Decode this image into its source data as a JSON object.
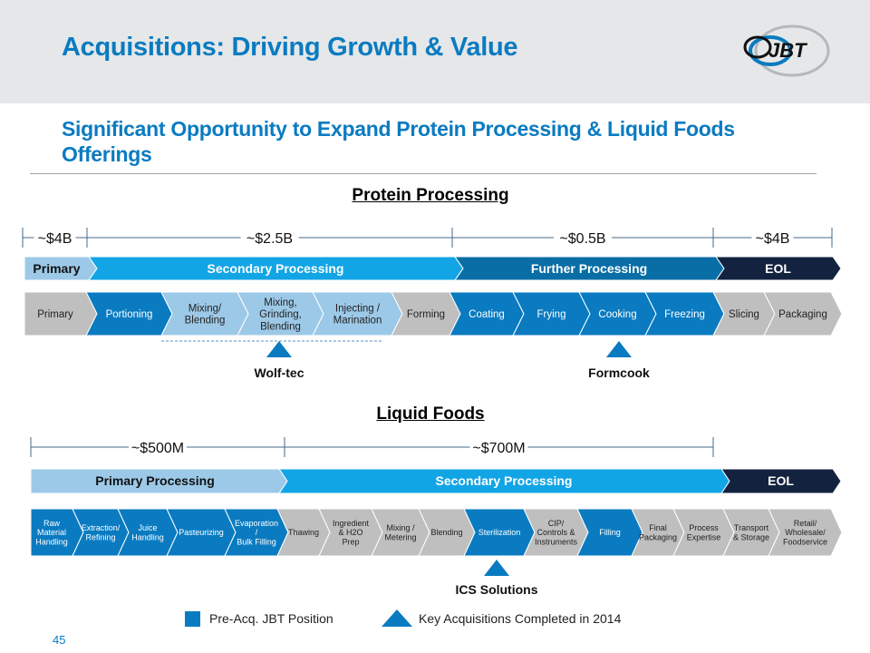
{
  "header": {
    "title": "Acquisitions: Driving Growth & Value",
    "logo": {
      "name": "jbt-logo",
      "text": "JBT"
    }
  },
  "subtitle": "Significant Opportunity to Expand Protein Processing & Liquid Foods Offerings",
  "colors": {
    "title_blue": "#0a7bc1",
    "light_blue": "#9dc9e8",
    "bright_blue": "#12a5e6",
    "mid_blue": "#0a6ea6",
    "navy": "#13233f",
    "jbt_blue": "#0a7bc1",
    "gray": "#bfbfbf"
  },
  "protein": {
    "title": "Protein Processing",
    "markets": [
      {
        "label": "~$4B"
      },
      {
        "label": "~$2.5B"
      },
      {
        "label": "~$0.5B"
      },
      {
        "label": "~$4B"
      }
    ],
    "phases": [
      {
        "label": "Primary",
        "color": "light_blue",
        "text_color": "#111"
      },
      {
        "label": "Secondary Processing",
        "color": "bright_blue",
        "text_color": "#fff"
      },
      {
        "label": "Further Processing",
        "color": "mid_blue",
        "text_color": "#fff"
      },
      {
        "label": "EOL",
        "color": "navy",
        "text_color": "#fff"
      }
    ],
    "steps": [
      {
        "label": "Primary",
        "status": "gray"
      },
      {
        "label": "Portioning",
        "status": "jbt"
      },
      {
        "label": "Mixing/\nBlending",
        "status": "acquired"
      },
      {
        "label": "Mixing,\nGrinding,\nBlending",
        "status": "acquired"
      },
      {
        "label": "Injecting /\nMarination",
        "status": "acquired"
      },
      {
        "label": "Forming",
        "status": "gray"
      },
      {
        "label": "Coating",
        "status": "jbt"
      },
      {
        "label": "Frying",
        "status": "jbt"
      },
      {
        "label": "Cooking",
        "status": "jbt"
      },
      {
        "label": "Freezing",
        "status": "jbt"
      },
      {
        "label": "Slicing",
        "status": "gray"
      },
      {
        "label": "Packaging",
        "status": "gray"
      }
    ],
    "acquisitions": [
      {
        "label": "Wolf-tec"
      },
      {
        "label": "Formcook"
      }
    ]
  },
  "liquid": {
    "title": "Liquid Foods",
    "markets": [
      {
        "label": "~$500M"
      },
      {
        "label": "~$700M"
      }
    ],
    "phases": [
      {
        "label": "Primary Processing",
        "color": "light_blue",
        "text_color": "#111"
      },
      {
        "label": "Secondary Processing",
        "color": "bright_blue",
        "text_color": "#fff"
      },
      {
        "label": "EOL",
        "color": "navy",
        "text_color": "#fff"
      }
    ],
    "steps": [
      {
        "label": "Raw\nMaterial\nHandling",
        "status": "jbt"
      },
      {
        "label": "Extraction/\nRefining",
        "status": "jbt"
      },
      {
        "label": "Juice\nHandling",
        "status": "jbt"
      },
      {
        "label": "Pasteurizing",
        "status": "jbt"
      },
      {
        "label": "Evaporation\n/\nBulk Filling",
        "status": "jbt"
      },
      {
        "label": "Thawing",
        "status": "gray"
      },
      {
        "label": "Ingredient\n& H2O\nPrep",
        "status": "gray"
      },
      {
        "label": "Mixing /\nMetering",
        "status": "gray"
      },
      {
        "label": "Blending",
        "status": "gray"
      },
      {
        "label": "Sterilization",
        "status": "jbt"
      },
      {
        "label": "CIP/\nControls &\nInstruments",
        "status": "gray"
      },
      {
        "label": "Filling",
        "status": "jbt"
      },
      {
        "label": "Final\nPackaging",
        "status": "gray"
      },
      {
        "label": "Process\nExpertise",
        "status": "gray"
      },
      {
        "label": "Transport\n& Storage",
        "status": "gray"
      },
      {
        "label": "Retail/\nWholesale/\nFoodservice",
        "status": "gray"
      }
    ],
    "acquisitions": [
      {
        "label": "ICS Solutions"
      }
    ]
  },
  "legend": {
    "square_label": "Pre-Acq. JBT Position",
    "triangle_label": "Key Acquisitions Completed in 2014"
  },
  "page_number": "45"
}
